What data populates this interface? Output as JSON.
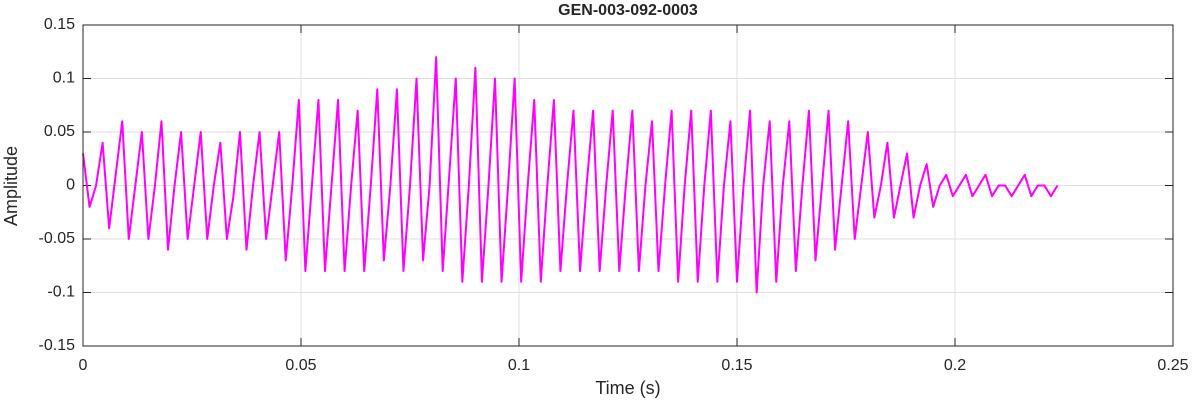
{
  "chart_data": {
    "type": "line",
    "title": "GEN-003-092-0003",
    "xlabel": "Time (s)",
    "ylabel": "Amplitude",
    "color": "#ff00ff",
    "grid": true,
    "xlim": [
      0,
      0.25
    ],
    "xticks": [
      0,
      0.05,
      0.1,
      0.15,
      0.2,
      0.25
    ],
    "ylim": [
      -0.15,
      0.15
    ],
    "yticks": [
      -0.15,
      -0.1,
      -0.05,
      0,
      0.05,
      0.1,
      0.15
    ],
    "x": [
      0,
      0.0015,
      0.003,
      0.0045,
      0.006,
      0.0075,
      0.009,
      0.0105,
      0.012,
      0.0135,
      0.015,
      0.0165,
      0.018,
      0.0195,
      0.021,
      0.0225,
      0.024,
      0.0255,
      0.027,
      0.0285,
      0.03,
      0.0315,
      0.033,
      0.0345,
      0.036,
      0.0375,
      0.039,
      0.0405,
      0.042,
      0.0435,
      0.045,
      0.0465,
      0.048,
      0.0495,
      0.051,
      0.0525,
      0.054,
      0.0555,
      0.057,
      0.0585,
      0.06,
      0.0615,
      0.063,
      0.0645,
      0.066,
      0.0675,
      0.069,
      0.0705,
      0.072,
      0.0735,
      0.075,
      0.0765,
      0.078,
      0.0795,
      0.081,
      0.0825,
      0.084,
      0.0855,
      0.087,
      0.0885,
      0.09,
      0.0915,
      0.093,
      0.0945,
      0.096,
      0.0975,
      0.099,
      0.1005,
      0.102,
      0.1035,
      0.105,
      0.1065,
      0.108,
      0.1095,
      0.111,
      0.1125,
      0.114,
      0.1155,
      0.117,
      0.1185,
      0.12,
      0.1215,
      0.123,
      0.1245,
      0.126,
      0.1275,
      0.129,
      0.1305,
      0.132,
      0.1335,
      0.135,
      0.1365,
      0.138,
      0.1395,
      0.141,
      0.1425,
      0.144,
      0.1455,
      0.147,
      0.1485,
      0.15,
      0.1515,
      0.153,
      0.1545,
      0.156,
      0.1575,
      0.159,
      0.1605,
      0.162,
      0.1635,
      0.165,
      0.1665,
      0.168,
      0.1695,
      0.171,
      0.1725,
      0.174,
      0.1755,
      0.177,
      0.1785,
      0.18,
      0.1815,
      0.183,
      0.1845,
      0.186,
      0.1875,
      0.189,
      0.1905,
      0.192,
      0.1935,
      0.195,
      0.1965,
      0.198,
      0.1995,
      0.201,
      0.2025,
      0.204,
      0.2055,
      0.207,
      0.2085,
      0.21,
      0.2115,
      0.213,
      0.2145,
      0.216,
      0.2175,
      0.219,
      0.2205,
      0.222,
      0.2235
    ],
    "values": [
      0.03,
      -0.02,
      0.0,
      0.04,
      -0.04,
      0.01,
      0.06,
      -0.05,
      0.0,
      0.05,
      -0.05,
      0.0,
      0.06,
      -0.06,
      0.0,
      0.05,
      -0.05,
      0.0,
      0.05,
      -0.05,
      0.0,
      0.04,
      -0.05,
      -0.01,
      0.05,
      -0.06,
      0.0,
      0.05,
      -0.05,
      0.0,
      0.05,
      -0.07,
      0.0,
      0.08,
      -0.08,
      0.0,
      0.08,
      -0.08,
      0.0,
      0.08,
      -0.08,
      0.0,
      0.07,
      -0.08,
      0.0,
      0.09,
      -0.07,
      0.0,
      0.09,
      -0.08,
      0.0,
      0.1,
      -0.07,
      0.0,
      0.12,
      -0.08,
      0.01,
      0.1,
      -0.09,
      0.0,
      0.11,
      -0.09,
      0.0,
      0.1,
      -0.09,
      0.0,
      0.1,
      -0.09,
      0.0,
      0.08,
      -0.09,
      0.0,
      0.08,
      -0.08,
      0.0,
      0.07,
      -0.08,
      0.0,
      0.07,
      -0.08,
      0.0,
      0.07,
      -0.08,
      0.0,
      0.07,
      -0.08,
      0.0,
      0.06,
      -0.08,
      0.0,
      0.07,
      -0.09,
      0.0,
      0.07,
      -0.09,
      0.0,
      0.07,
      -0.09,
      0.0,
      0.06,
      -0.09,
      0.0,
      0.07,
      -0.1,
      0.0,
      0.06,
      -0.09,
      0.0,
      0.06,
      -0.08,
      0.0,
      0.07,
      -0.07,
      0.0,
      0.07,
      -0.06,
      0.0,
      0.06,
      -0.05,
      0.0,
      0.05,
      -0.03,
      0.0,
      0.04,
      -0.03,
      0.0,
      0.03,
      -0.03,
      0.0,
      0.02,
      -0.02,
      0.0,
      0.01,
      -0.01,
      0.0,
      0.01,
      -0.01,
      0.0,
      0.01,
      -0.01,
      0.0,
      0.0,
      -0.01,
      0.0,
      0.01,
      -0.01,
      0.0,
      0.0,
      -0.01,
      0.0
    ]
  }
}
